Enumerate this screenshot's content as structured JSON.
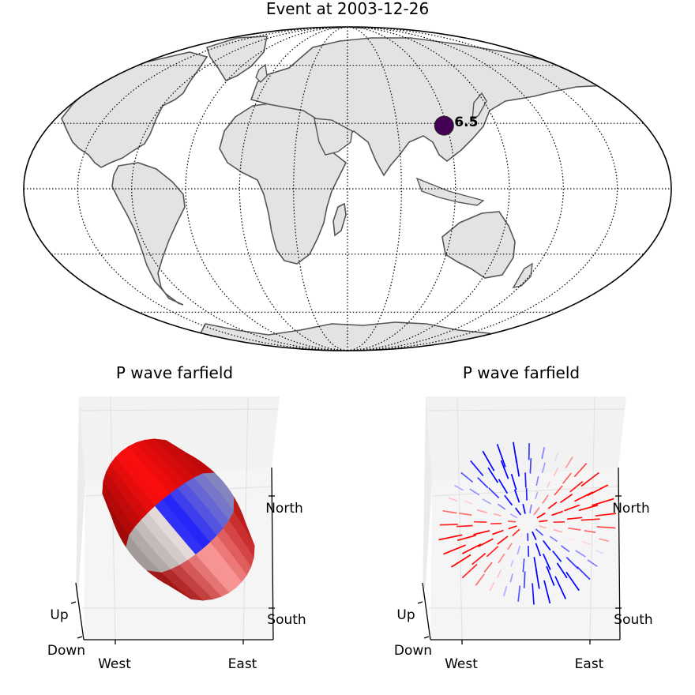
{
  "chart_data": [
    {
      "type": "scatter",
      "title": "Event at 2003-12-26",
      "projection": "mollweide",
      "graticule": "dotted",
      "points": [
        {
          "lon": 58.3,
          "lat": 28.9,
          "magnitude": 6.5,
          "label": "6.5",
          "color": "#440154"
        }
      ]
    },
    {
      "type": "surface3d",
      "title": "P wave farfield",
      "axes": {
        "x_ticks": [
          "West",
          "East"
        ],
        "y_ticks": [
          "North",
          "South"
        ],
        "z_ticks": [
          "Up",
          "Down"
        ]
      },
      "colormap": [
        "#0000ff",
        "#ffffff",
        "#ff0000"
      ]
    },
    {
      "type": "quiver3d",
      "title": "P wave farfield",
      "axes": {
        "x_ticks": [
          "West",
          "East"
        ],
        "y_ticks": [
          "North",
          "South"
        ],
        "z_ticks": [
          "Up",
          "Down"
        ]
      },
      "colormap": [
        "#0000ff",
        "#ffffff",
        "#ff0000"
      ]
    }
  ]
}
